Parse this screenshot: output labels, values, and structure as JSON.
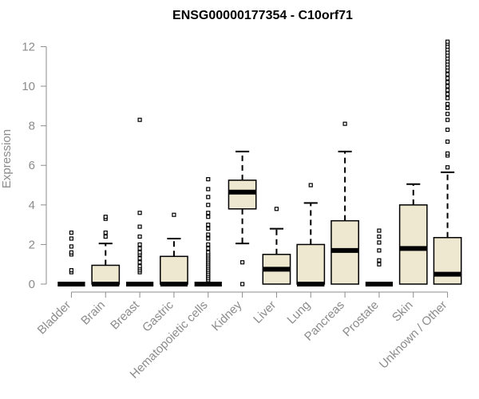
{
  "chart_data": {
    "type": "box",
    "title": "ENSG00000177354 - C10orf71",
    "xlabel": "",
    "ylabel": "Expression",
    "ylim": [
      0,
      12.3
    ],
    "yticks": [
      0,
      2,
      4,
      6,
      8,
      10,
      12
    ],
    "grid": false,
    "legend": "none",
    "colors": {
      "box_fill": "#efe8d1",
      "box_stroke": "#000000",
      "median": "#000000",
      "axis": "#8c8c8c"
    },
    "categories": [
      "Bladder",
      "Brain",
      "Breast",
      "Gastric",
      "Hematopoietic cells",
      "Kidney",
      "Liver",
      "Lung",
      "Pancreas",
      "Prostate",
      "Skin",
      "Unknown / Other"
    ],
    "boxes": [
      {
        "category": "Bladder",
        "whisker_low": 0,
        "q1": 0,
        "median": 0,
        "q3": 0,
        "whisker_high": 0,
        "outliers": [
          0.6,
          0.7,
          1.5,
          1.6,
          1.9,
          2.3,
          2.6
        ]
      },
      {
        "category": "Brain",
        "whisker_low": 0,
        "q1": 0,
        "median": 0,
        "q3": 0.95,
        "whisker_high": 2.05,
        "outliers": [
          2.4,
          2.6,
          3.3,
          3.4
        ]
      },
      {
        "category": "Breast",
        "whisker_low": 0,
        "q1": 0,
        "median": 0,
        "q3": 0,
        "whisker_high": 0,
        "outliers": [
          0.6,
          0.7,
          0.8,
          0.9,
          1.1,
          1.3,
          1.5,
          1.6,
          1.8,
          2.0,
          2.4,
          2.9,
          3.6,
          8.3
        ]
      },
      {
        "category": "Gastric",
        "whisker_low": 0,
        "q1": 0,
        "median": 0,
        "q3": 1.4,
        "whisker_high": 2.3,
        "outliers": [
          3.5
        ]
      },
      {
        "category": "Hematopoietic cells",
        "whisker_low": 0,
        "q1": 0,
        "median": 0,
        "q3": 0,
        "whisker_high": 0,
        "outliers": [
          0.2,
          0.3,
          0.4,
          0.5,
          0.6,
          0.7,
          0.8,
          0.9,
          1.0,
          1.1,
          1.2,
          1.3,
          1.4,
          1.5,
          1.6,
          1.8,
          2.0,
          2.3,
          2.5,
          2.8,
          3.0,
          3.4,
          3.6,
          4.0,
          4.4,
          4.8,
          5.3
        ]
      },
      {
        "category": "Kidney",
        "whisker_low": 2.05,
        "q1": 3.8,
        "median": 4.65,
        "q3": 5.25,
        "whisker_high": 6.7,
        "outliers": [
          0,
          1.1
        ]
      },
      {
        "category": "Liver",
        "whisker_low": 0,
        "q1": 0,
        "median": 0.75,
        "q3": 1.5,
        "whisker_high": 2.8,
        "outliers": [
          3.8
        ]
      },
      {
        "category": "Lung",
        "whisker_low": 0,
        "q1": 0,
        "median": 0,
        "q3": 2.0,
        "whisker_high": 4.1,
        "outliers": [
          5.0
        ]
      },
      {
        "category": "Pancreas",
        "whisker_low": 0,
        "q1": 0,
        "median": 1.7,
        "q3": 3.2,
        "whisker_high": 6.7,
        "outliers": [
          8.1
        ]
      },
      {
        "category": "Prostate",
        "whisker_low": 0,
        "q1": 0,
        "median": 0,
        "q3": 0,
        "whisker_high": 0,
        "outliers": [
          1.0,
          1.2,
          1.7,
          2.1,
          2.4,
          2.7
        ]
      },
      {
        "category": "Skin",
        "whisker_low": 0,
        "q1": 0,
        "median": 1.8,
        "q3": 4.0,
        "whisker_high": 5.05,
        "outliers": []
      },
      {
        "category": "Unknown / Other",
        "whisker_low": 0,
        "q1": 0,
        "median": 0.5,
        "q3": 2.35,
        "whisker_high": 5.65,
        "outliers": [
          5.9,
          6.5,
          6.6,
          7.2,
          7.8,
          8.3,
          8.6,
          8.9,
          9.1,
          9.4,
          9.6,
          9.8,
          10.0,
          10.2,
          10.4,
          10.6,
          10.8,
          10.95,
          11.1,
          11.25,
          11.4,
          11.55,
          11.7,
          11.85,
          12.0,
          12.15,
          12.25
        ]
      }
    ]
  }
}
